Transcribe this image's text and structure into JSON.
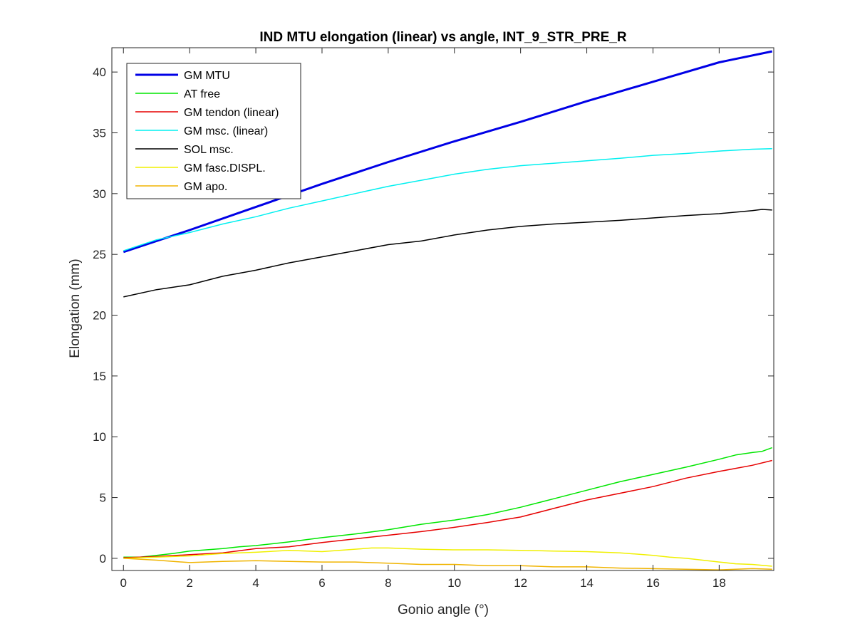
{
  "chart_data": {
    "type": "line",
    "title": "IND MTU elongation (linear) vs angle, INT_9_STR_PRE_R",
    "xlabel": "Gonio angle (°)",
    "ylabel": "Elongation (mm)",
    "xlim": [
      -0.35,
      19.65
    ],
    "ylim": [
      -1,
      42
    ],
    "xticks": [
      0,
      2,
      4,
      6,
      8,
      10,
      12,
      14,
      16,
      18
    ],
    "yticks": [
      0,
      5,
      10,
      15,
      20,
      25,
      30,
      35,
      40
    ],
    "grid": false,
    "legend_position": "top-left",
    "series": [
      {
        "name": "GM MTU",
        "color": "#0000e6",
        "x": [
          0,
          2,
          4,
          6,
          8,
          10,
          12,
          14,
          16,
          18,
          19.6
        ],
        "y": [
          25.2,
          27.0,
          28.9,
          30.8,
          32.6,
          34.3,
          35.9,
          37.6,
          39.2,
          40.8,
          41.7
        ]
      },
      {
        "name": "AT free",
        "color": "#00e600",
        "x": [
          0,
          0.5,
          1,
          1.5,
          2,
          2.5,
          3,
          3.5,
          4,
          5,
          6,
          7,
          8,
          9,
          10,
          11,
          12,
          13,
          14,
          15,
          16,
          17,
          18,
          18.5,
          19,
          19.3,
          19.6
        ],
        "y": [
          0.1,
          0.1,
          0.25,
          0.4,
          0.6,
          0.7,
          0.8,
          0.95,
          1.05,
          1.35,
          1.7,
          2.0,
          2.35,
          2.8,
          3.15,
          3.6,
          4.2,
          4.9,
          5.6,
          6.3,
          6.9,
          7.5,
          8.15,
          8.5,
          8.7,
          8.8,
          9.1
        ]
      },
      {
        "name": "GM tendon (linear)",
        "color": "#e60000",
        "x": [
          0,
          1,
          2,
          3,
          4,
          5,
          6,
          7,
          8,
          9,
          10,
          11,
          12,
          13,
          14,
          15,
          16,
          17,
          18,
          19,
          19.6
        ],
        "y": [
          0.05,
          0.15,
          0.3,
          0.45,
          0.8,
          0.95,
          1.3,
          1.6,
          1.9,
          2.2,
          2.55,
          2.95,
          3.4,
          4.1,
          4.8,
          5.35,
          5.9,
          6.6,
          7.15,
          7.65,
          8.05
        ]
      },
      {
        "name": "GM msc. (linear)",
        "color": "#00f0f0",
        "x": [
          0,
          1,
          2,
          3,
          4,
          5,
          6,
          7,
          8,
          9,
          10,
          11,
          12,
          13,
          14,
          15,
          16,
          17,
          18,
          19,
          19.6
        ],
        "y": [
          25.3,
          26.2,
          26.8,
          27.5,
          28.1,
          28.8,
          29.4,
          30.0,
          30.6,
          31.1,
          31.6,
          32.0,
          32.3,
          32.5,
          32.7,
          32.9,
          33.15,
          33.3,
          33.5,
          33.65,
          33.7
        ]
      },
      {
        "name": "SOL msc.",
        "color": "#000000",
        "x": [
          0,
          1,
          2,
          3,
          4,
          5,
          6,
          7,
          8,
          9,
          10,
          11,
          12,
          13,
          14,
          15,
          16,
          17,
          18,
          19,
          19.3,
          19.6
        ],
        "y": [
          21.5,
          22.1,
          22.5,
          23.2,
          23.7,
          24.3,
          24.8,
          25.3,
          25.8,
          26.1,
          26.6,
          27.0,
          27.3,
          27.5,
          27.65,
          27.8,
          28.0,
          28.2,
          28.35,
          28.6,
          28.7,
          28.65
        ]
      },
      {
        "name": "GM fasc.DISPL.",
        "color": "#f0f000",
        "x": [
          0,
          1,
          2,
          3,
          4,
          5,
          6,
          7,
          7.5,
          8,
          9,
          10,
          11,
          12,
          13,
          14,
          15,
          16,
          16.5,
          17,
          17.5,
          18,
          18.5,
          19,
          19.6
        ],
        "y": [
          0.0,
          0.1,
          0.2,
          0.4,
          0.5,
          0.65,
          0.55,
          0.75,
          0.85,
          0.85,
          0.75,
          0.7,
          0.7,
          0.65,
          0.6,
          0.55,
          0.45,
          0.25,
          0.1,
          0.0,
          -0.15,
          -0.3,
          -0.45,
          -0.5,
          -0.65
        ]
      },
      {
        "name": "GM apo.",
        "color": "#f0b400",
        "x": [
          0,
          1,
          2,
          3,
          4,
          5,
          6,
          7,
          8,
          9,
          10,
          11,
          12,
          13,
          14,
          15,
          16,
          17,
          18,
          19,
          19.6
        ],
        "y": [
          0.0,
          -0.15,
          -0.35,
          -0.25,
          -0.2,
          -0.25,
          -0.3,
          -0.3,
          -0.4,
          -0.5,
          -0.5,
          -0.6,
          -0.6,
          -0.7,
          -0.7,
          -0.8,
          -0.85,
          -0.9,
          -0.95,
          -0.85,
          -0.9
        ]
      }
    ]
  }
}
